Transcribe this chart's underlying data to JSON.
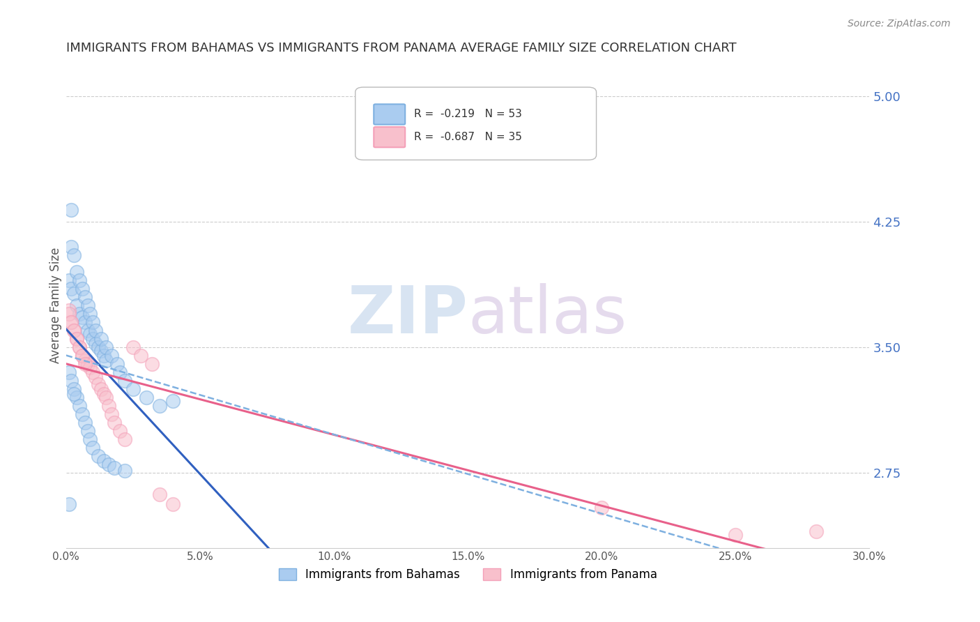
{
  "title": "IMMIGRANTS FROM BAHAMAS VS IMMIGRANTS FROM PANAMA AVERAGE FAMILY SIZE CORRELATION CHART",
  "source": "Source: ZipAtlas.com",
  "xlabel": "",
  "ylabel": "Average Family Size",
  "right_yticks": [
    2.75,
    3.5,
    4.25,
    5.0
  ],
  "xlim": [
    0.0,
    0.3
  ],
  "ylim": [
    2.3,
    5.2
  ],
  "xtick_labels": [
    "0.0%",
    "5.0%",
    "10.0%",
    "15.0%",
    "20.0%",
    "25.0%",
    "30.0%"
  ],
  "xtick_values": [
    0.0,
    0.05,
    0.1,
    0.15,
    0.2,
    0.25,
    0.3
  ],
  "legend_entries": [
    {
      "label": "Immigrants from Bahamas",
      "color": "#87AEDE",
      "R": "-0.219",
      "N": "53"
    },
    {
      "label": "Immigrants from Panama",
      "color": "#F4A0B0",
      "R": "-0.687",
      "N": "35"
    }
  ],
  "bahamas_x": [
    0.001,
    0.002,
    0.003,
    0.004,
    0.005,
    0.006,
    0.007,
    0.008,
    0.009,
    0.01,
    0.011,
    0.012,
    0.013,
    0.014,
    0.015,
    0.002,
    0.003,
    0.004,
    0.005,
    0.006,
    0.007,
    0.008,
    0.009,
    0.01,
    0.011,
    0.013,
    0.015,
    0.017,
    0.019,
    0.02,
    0.022,
    0.025,
    0.03,
    0.035,
    0.04,
    0.001,
    0.002,
    0.003,
    0.004,
    0.005,
    0.006,
    0.007,
    0.008,
    0.009,
    0.01,
    0.012,
    0.014,
    0.016,
    0.018,
    0.022,
    0.002,
    0.001,
    0.003
  ],
  "bahamas_y": [
    3.9,
    3.85,
    3.82,
    3.75,
    3.7,
    3.68,
    3.65,
    3.6,
    3.58,
    3.55,
    3.52,
    3.5,
    3.48,
    3.45,
    3.42,
    4.1,
    4.05,
    3.95,
    3.9,
    3.85,
    3.8,
    3.75,
    3.7,
    3.65,
    3.6,
    3.55,
    3.5,
    3.45,
    3.4,
    3.35,
    3.3,
    3.25,
    3.2,
    3.15,
    3.18,
    3.35,
    3.3,
    3.25,
    3.2,
    3.15,
    3.1,
    3.05,
    3.0,
    2.95,
    2.9,
    2.85,
    2.82,
    2.8,
    2.78,
    2.76,
    4.32,
    2.56,
    3.22
  ],
  "panama_x": [
    0.001,
    0.002,
    0.003,
    0.004,
    0.005,
    0.006,
    0.007,
    0.008,
    0.009,
    0.01,
    0.011,
    0.012,
    0.013,
    0.014,
    0.015,
    0.016,
    0.017,
    0.018,
    0.02,
    0.022,
    0.025,
    0.028,
    0.032,
    0.035,
    0.04,
    0.001,
    0.002,
    0.003,
    0.004,
    0.005,
    0.006,
    0.007,
    0.2,
    0.25,
    0.28
  ],
  "panama_y": [
    3.72,
    3.65,
    3.6,
    3.55,
    3.5,
    3.45,
    3.42,
    3.4,
    3.38,
    3.35,
    3.32,
    3.28,
    3.25,
    3.22,
    3.2,
    3.15,
    3.1,
    3.05,
    3.0,
    2.95,
    3.5,
    3.45,
    3.4,
    2.62,
    2.56,
    3.7,
    3.65,
    3.6,
    3.55,
    3.5,
    3.45,
    3.4,
    2.54,
    2.38,
    2.4
  ],
  "background_color": "#ffffff",
  "grid_color": "#cccccc",
  "title_color": "#333333",
  "right_axis_color": "#4472c4"
}
